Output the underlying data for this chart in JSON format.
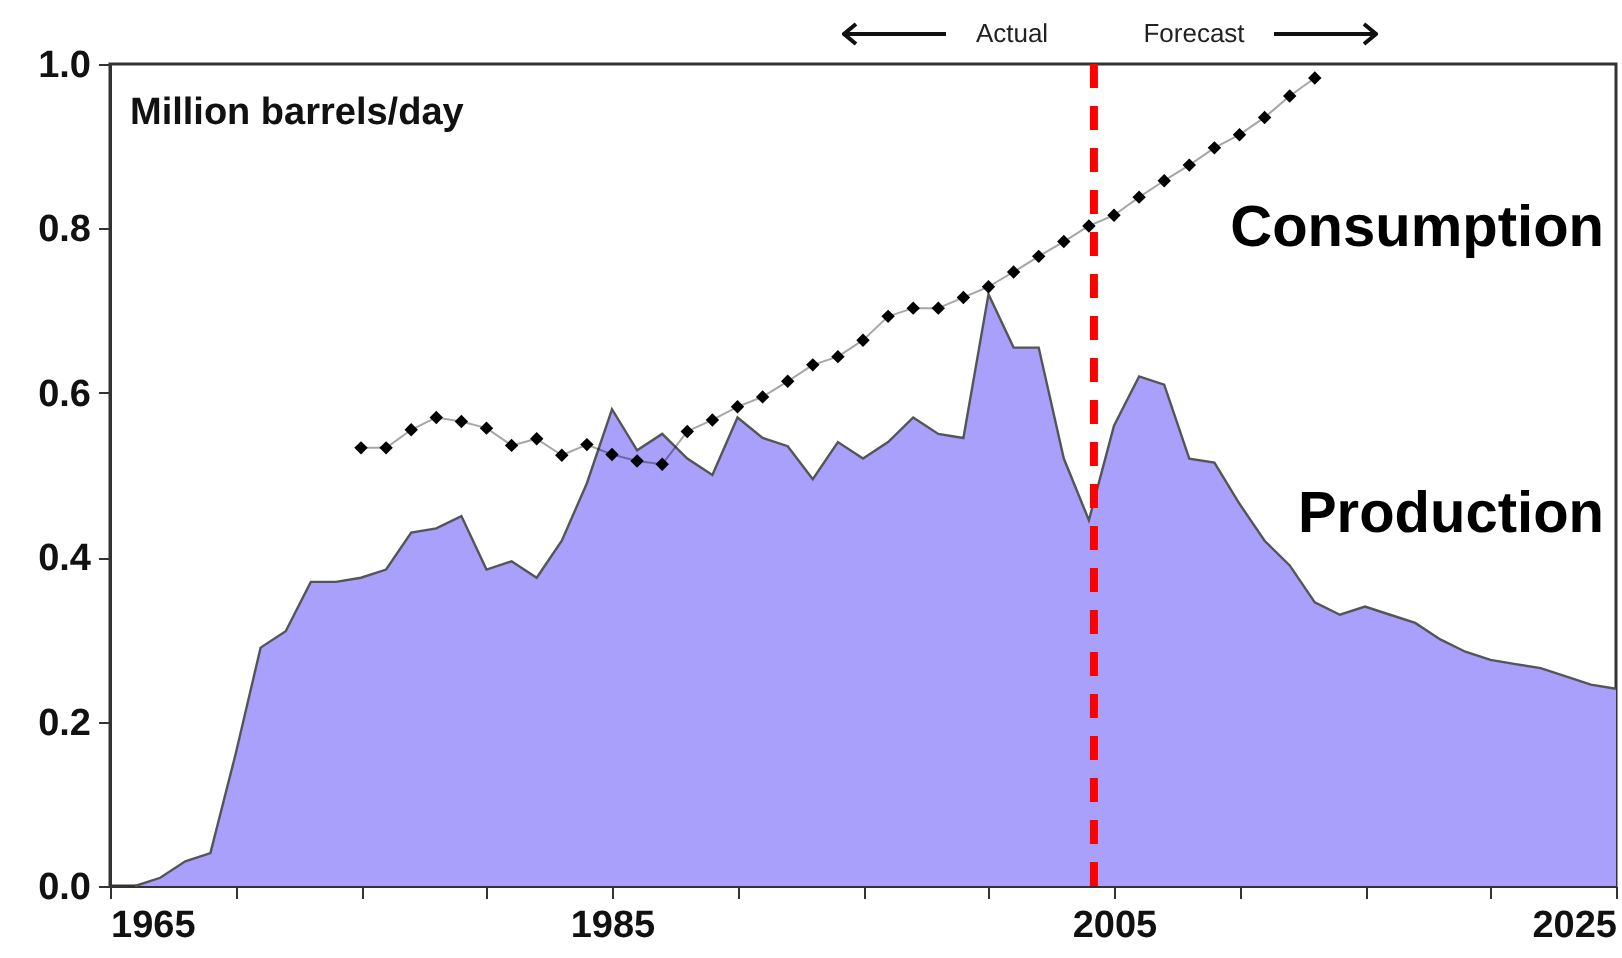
{
  "chart_data": {
    "type": "area",
    "ylabel": "Million barrels/day",
    "xlim": [
      1965,
      2025
    ],
    "xticks": [
      1965,
      {
        "value": 1970,
        "label": null
      },
      {
        "value": 1975,
        "label": null
      },
      {
        "value": 1980,
        "label": null
      },
      1985,
      {
        "value": 1990,
        "label": null
      },
      {
        "value": 1995,
        "label": null
      },
      {
        "value": 2000,
        "label": null
      },
      2005,
      {
        "value": 2010,
        "label": null
      },
      {
        "value": 2015,
        "label": null
      },
      {
        "value": 2020,
        "label": null
      },
      2025
    ],
    "ylim": [
      0,
      1
    ],
    "yticks": [
      {
        "value": 0,
        "label": "0.0"
      },
      0.2,
      0.4,
      0.6,
      0.8,
      {
        "value": 1,
        "label": "1.0"
      }
    ],
    "grid": false,
    "series": [
      {
        "name": "Production",
        "color": "#a8a0fa",
        "x": [
          1966,
          1967,
          1968,
          1969,
          1970,
          1971,
          1972,
          1973,
          1974,
          1975,
          1976,
          1977,
          1978,
          1979,
          1980,
          1981,
          1982,
          1983,
          1984,
          1985,
          1986,
          1987,
          1988,
          1989,
          1990,
          1991,
          1992,
          1993,
          1994,
          1995,
          1996,
          1997,
          1998,
          1999,
          2000,
          2001,
          2002,
          2003,
          2004,
          2005,
          2006,
          2007,
          2008,
          2009,
          2010,
          2011,
          2012,
          2013,
          2014,
          2015,
          2016,
          2017,
          2018,
          2019,
          2020,
          2021,
          2022,
          2023,
          2024,
          2025
        ],
        "values": [
          0.0,
          0.01,
          0.03,
          0.04,
          0.16,
          0.29,
          0.31,
          0.37,
          0.37,
          0.375,
          0.385,
          0.43,
          0.435,
          0.45,
          0.385,
          0.395,
          0.375,
          0.42,
          0.49,
          0.58,
          0.53,
          0.55,
          0.52,
          0.5,
          0.57,
          0.545,
          0.535,
          0.495,
          0.54,
          0.52,
          0.54,
          0.57,
          0.55,
          0.545,
          0.72,
          0.655,
          0.655,
          0.52,
          0.445,
          0.56,
          0.62,
          0.61,
          0.52,
          0.515,
          0.465,
          0.42,
          0.39,
          0.345,
          0.33,
          0.34,
          0.33,
          0.32,
          0.3,
          0.285,
          0.275,
          0.27,
          0.265,
          0.255,
          0.245,
          0.24
        ]
      },
      {
        "name": "Consumption",
        "type": "line",
        "color": "#000000",
        "marker": "diamond",
        "x": [
          1975,
          1976,
          1977,
          1978,
          1979,
          1980,
          1981,
          1982,
          1983,
          1984,
          1985,
          1986,
          1987,
          1988,
          1989,
          1990,
          1991,
          1992,
          1993,
          1994,
          1995,
          1996,
          1997,
          1998,
          1999,
          2000,
          2001,
          2002,
          2003,
          2004,
          2005,
          2006,
          2007,
          2008,
          2009,
          2010,
          2011,
          2012,
          2013
        ],
        "values": [
          0.533,
          0.533,
          0.555,
          0.57,
          0.565,
          0.557,
          0.536,
          0.544,
          0.524,
          0.537,
          0.525,
          0.517,
          0.513,
          0.553,
          0.567,
          0.583,
          0.595,
          0.614,
          0.634,
          0.644,
          0.664,
          0.693,
          0.703,
          0.703,
          0.716,
          0.729,
          0.747,
          0.766,
          0.784,
          0.803,
          0.816,
          0.838,
          0.858,
          0.877,
          0.898,
          0.914,
          0.935,
          0.961,
          0.983
        ]
      }
    ],
    "ref_lines": [
      {
        "axis": "x",
        "value": 2004.2,
        "color": "#ff0000",
        "line_style": "dashed"
      }
    ],
    "annotations": [
      "Actual",
      "Forecast"
    ]
  }
}
